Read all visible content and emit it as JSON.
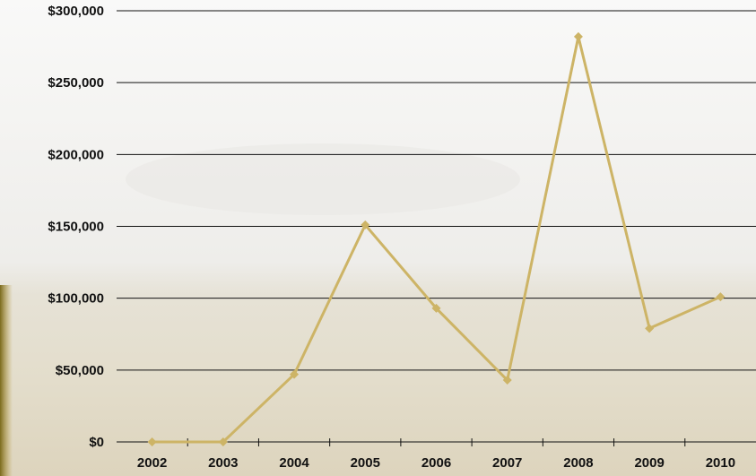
{
  "chart_data": {
    "type": "line",
    "categories": [
      "2002",
      "2003",
      "2004",
      "2005",
      "2006",
      "2007",
      "2008",
      "2009",
      "2010"
    ],
    "series": [
      {
        "values": [
          0,
          0,
          47000,
          151000,
          93000,
          43000,
          282000,
          79000,
          101000
        ]
      }
    ],
    "y_ticks": [
      0,
      50000,
      100000,
      150000,
      200000,
      250000,
      300000
    ],
    "y_tick_labels": [
      "$0",
      "$50,000",
      "$100,000",
      "$150,000",
      "$200,000",
      "$250,000",
      "$300,000"
    ],
    "ylim": [
      0,
      300000
    ],
    "grid": true,
    "legend": "none",
    "colors": {
      "line": "#cdb466",
      "gridline": "#111111",
      "text": "#111111"
    }
  }
}
